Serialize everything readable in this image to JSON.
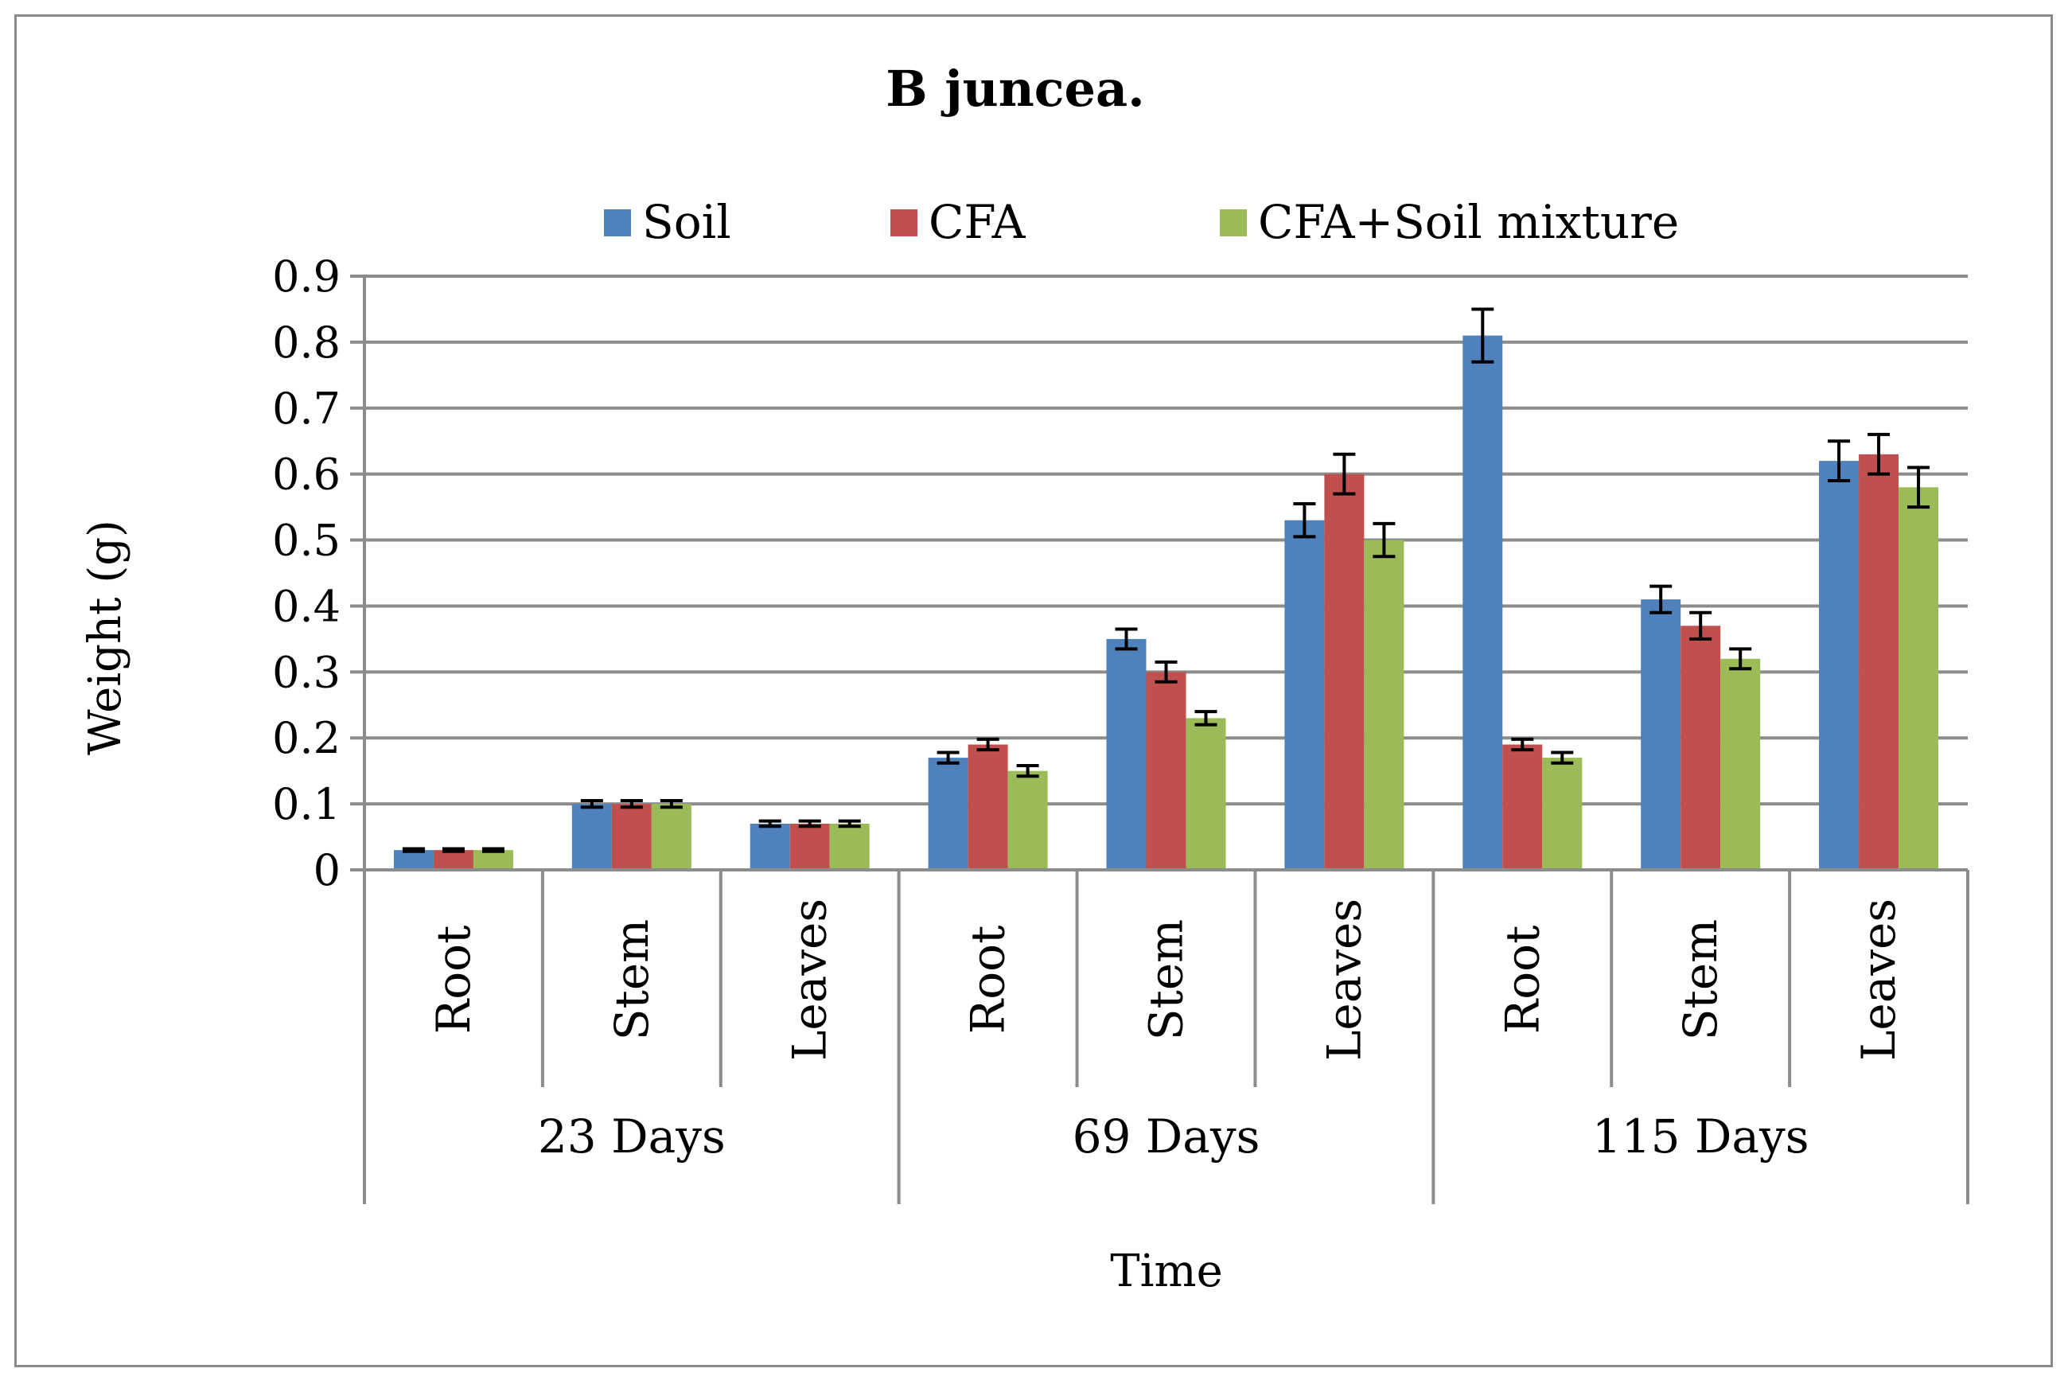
{
  "chart_data": {
    "type": "bar",
    "title": "B juncea.",
    "xlabel": "Time",
    "ylabel": "Weight (g)",
    "ylim": [
      0,
      0.9
    ],
    "yticks": [
      "0",
      "0.1",
      "0.2",
      "0.3",
      "0.4",
      "0.5",
      "0.6",
      "0.7",
      "0.8",
      "0.9"
    ],
    "ytick_values": [
      0,
      0.1,
      0.2,
      0.3,
      0.4,
      0.5,
      0.6,
      0.7,
      0.8,
      0.9
    ],
    "grid": true,
    "legend_position": "top",
    "groups": [
      {
        "label": "23 Days",
        "categories": [
          "Root",
          "Stem",
          "Leaves"
        ]
      },
      {
        "label": "69 Days",
        "categories": [
          "Root",
          "Stem",
          "Leaves"
        ]
      },
      {
        "label": "115 Days",
        "categories": [
          "Root",
          "Stem",
          "Leaves"
        ]
      }
    ],
    "series": [
      {
        "name": "Soil",
        "color": "#4f81bd",
        "values": [
          0.03,
          0.1,
          0.07,
          0.17,
          0.35,
          0.53,
          0.81,
          0.41,
          0.62
        ],
        "errors": [
          0.002,
          0.005,
          0.004,
          0.008,
          0.015,
          0.025,
          0.04,
          0.02,
          0.03
        ]
      },
      {
        "name": "CFA",
        "color": "#c0504d",
        "values": [
          0.03,
          0.1,
          0.07,
          0.19,
          0.3,
          0.6,
          0.19,
          0.37,
          0.63
        ],
        "errors": [
          0.002,
          0.005,
          0.004,
          0.008,
          0.015,
          0.03,
          0.008,
          0.02,
          0.03
        ]
      },
      {
        "name": "CFA+Soil mixture",
        "color": "#9bbb59",
        "values": [
          0.03,
          0.1,
          0.07,
          0.15,
          0.23,
          0.5,
          0.17,
          0.32,
          0.58
        ],
        "errors": [
          0.002,
          0.005,
          0.004,
          0.008,
          0.01,
          0.025,
          0.008,
          0.015,
          0.03
        ]
      }
    ]
  }
}
